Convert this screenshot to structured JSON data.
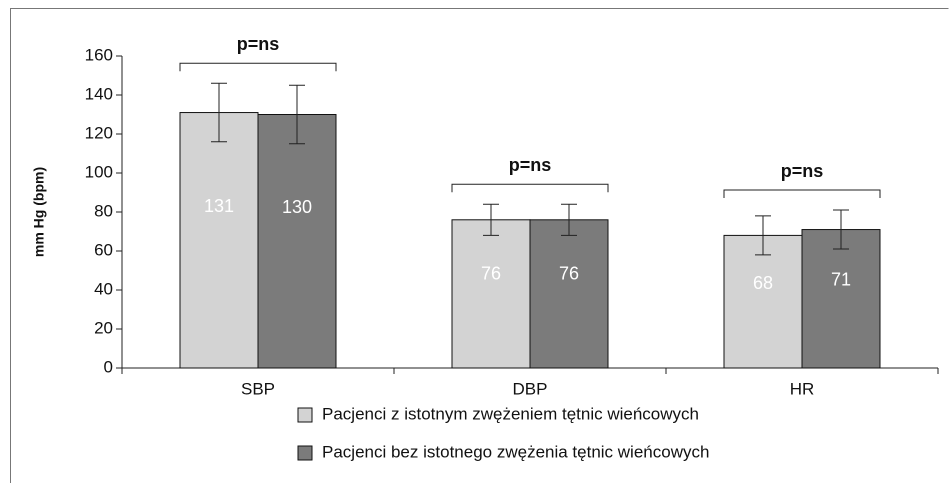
{
  "chart_data": {
    "type": "bar",
    "y_label": "mm Hg (bpm)",
    "categories": [
      "SBP",
      "DBP",
      "HR"
    ],
    "series": [
      {
        "name": "Pacjenci z istotnym zwężeniem tętnic wieńcowych",
        "color": "#d3d3d3",
        "values": [
          131,
          76,
          68
        ],
        "errors": [
          15,
          8,
          10
        ]
      },
      {
        "name": "Pacjenci bez istotnego zwężenia tętnic wieńcowych",
        "color": "#7b7b7b",
        "values": [
          130,
          76,
          71
        ],
        "errors": [
          15,
          8,
          10
        ]
      }
    ],
    "annotations": [
      "p=ns",
      "p=ns",
      "p=ns"
    ],
    "ylim": [
      0,
      160
    ],
    "yticks": [
      0,
      20,
      40,
      60,
      80,
      100,
      120,
      140,
      160
    ],
    "grid": false,
    "legend": "bottom"
  }
}
